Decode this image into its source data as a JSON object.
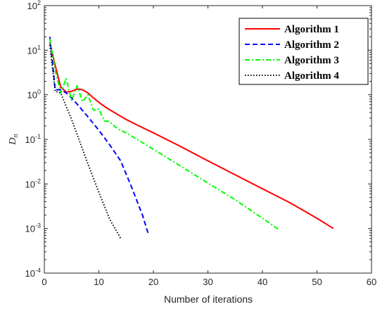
{
  "chart_data": {
    "type": "line",
    "title": "",
    "xlabel": "Number of iterations",
    "ylabel": "D",
    "ylabel_subscript": "n",
    "xlim": [
      0,
      60
    ],
    "ylim": [
      0.0001,
      100
    ],
    "yscale": "log",
    "grid": false,
    "legend_position": "top-right",
    "x_ticks": [
      "0",
      "10",
      "20",
      "30",
      "40",
      "50",
      "60"
    ],
    "y_ticks": [
      {
        "base": "10",
        "exp": "2"
      },
      {
        "base": "10",
        "exp": "1"
      },
      {
        "base": "10",
        "exp": "0"
      },
      {
        "base": "10",
        "exp": "-1"
      },
      {
        "base": "10",
        "exp": "-2"
      },
      {
        "base": "10",
        "exp": "-3"
      },
      {
        "base": "10",
        "exp": "-4"
      }
    ],
    "series": [
      {
        "name": "Algorithm 1",
        "color": "#ff0000",
        "dash": "solid",
        "x": [
          1,
          2,
          3,
          4,
          5,
          6,
          7,
          8,
          9,
          10,
          11,
          12,
          13,
          14,
          15,
          17,
          20,
          25,
          30,
          35,
          40,
          45,
          50,
          53
        ],
        "y": [
          15,
          4.5,
          1.5,
          1.15,
          1.2,
          1.35,
          1.3,
          1.1,
          0.85,
          0.68,
          0.55,
          0.46,
          0.39,
          0.33,
          0.28,
          0.21,
          0.14,
          0.069,
          0.033,
          0.016,
          0.0078,
          0.0038,
          0.0017,
          0.001
        ]
      },
      {
        "name": "Algorithm 2",
        "color": "#0000ff",
        "dash": "dashed",
        "x": [
          1,
          2,
          3,
          4,
          5,
          6,
          8,
          10,
          12,
          14,
          16,
          18,
          19
        ],
        "y": [
          20,
          1.3,
          1.3,
          1.1,
          0.85,
          0.62,
          0.32,
          0.16,
          0.075,
          0.033,
          0.0085,
          0.002,
          0.0008
        ]
      },
      {
        "name": "Algorithm 3",
        "color": "#00ff00",
        "dash": "dashdot",
        "x": [
          1,
          2,
          3,
          4,
          5,
          6,
          7,
          8,
          9,
          10,
          11,
          12,
          13,
          14,
          15,
          17,
          20,
          25,
          30,
          35,
          40,
          43
        ],
        "y": [
          18,
          3.5,
          1.1,
          2.3,
          0.75,
          1.6,
          0.7,
          1.0,
          0.45,
          0.48,
          0.26,
          0.25,
          0.19,
          0.16,
          0.14,
          0.1,
          0.06,
          0.025,
          0.0105,
          0.0044,
          0.0017,
          0.00095
        ]
      },
      {
        "name": "Algorithm 4",
        "color": "#000000",
        "dash": "dotted",
        "x": [
          1,
          2,
          3,
          4,
          5,
          6,
          8,
          10,
          12,
          14
        ],
        "y": [
          13,
          1.2,
          1.1,
          0.55,
          0.28,
          0.13,
          0.028,
          0.0065,
          0.0016,
          0.0006
        ]
      }
    ]
  }
}
